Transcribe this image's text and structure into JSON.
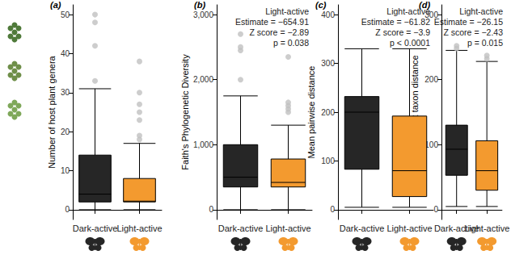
{
  "chart_data": [
    {
      "type": "boxplot",
      "title": "(a)",
      "y_label": "Number of host plant genera",
      "categories": [
        "Dark-active",
        "Light-active"
      ],
      "colors": [
        "#262626",
        "#f39a2f"
      ],
      "boxes": [
        [
          0,
          2,
          4,
          14,
          31
        ],
        [
          0,
          2,
          2.2,
          8,
          17
        ]
      ],
      "outliers": [
        [
          33,
          42,
          48,
          50
        ],
        [
          18,
          19,
          23,
          25,
          27,
          30,
          38
        ]
      ],
      "ylim": [
        -2.5,
        52.5
      ],
      "yticks": [
        0,
        10,
        20,
        30,
        40,
        50
      ],
      "grid": false
    },
    {
      "type": "boxplot",
      "title": "(b)",
      "y_label": "Faith's Phylogenetic Diversity",
      "categories": [
        "Dark-active",
        "Light-active"
      ],
      "colors": [
        "#262626",
        "#f39a2f"
      ],
      "boxes": [
        [
          0,
          350,
          500,
          1000,
          1750
        ],
        [
          0,
          350,
          420,
          780,
          1300
        ]
      ],
      "outliers": [
        [
          2000,
          2450,
          2500,
          2700
        ],
        [
          1500,
          1550,
          1600,
          1650,
          2350
        ]
      ],
      "ylim": [
        -150,
        3150
      ],
      "yticks": [
        0,
        1000,
        2000,
        3000
      ],
      "grid": false,
      "annotation": [
        "Light-active",
        "Estimate = −654.91",
        "Z score = −2.89",
        "p = 0.038"
      ]
    },
    {
      "type": "boxplot",
      "title": "(c)",
      "y_label": "Mean pairwise distance",
      "categories": [
        "Dark-active",
        "Light-active"
      ],
      "colors": [
        "#262626",
        "#f39a2f"
      ],
      "boxes": [
        [
          5,
          83,
          200,
          232,
          330
        ],
        [
          5,
          27,
          80,
          192,
          330
        ]
      ],
      "outliers": [
        [],
        []
      ],
      "ylim": [
        -20,
        420
      ],
      "yticks": [
        0,
        100,
        200,
        300,
        400
      ],
      "grid": false,
      "annotation": [
        "Light-active",
        "Estimate = −61.82",
        "Z score = −3.9",
        "p < 0.0001"
      ]
    },
    {
      "type": "boxplot",
      "title": "(d)",
      "y_label": "Mean nearest taxon distance",
      "categories": [
        "Dark-active",
        "Light-active"
      ],
      "colors": [
        "#262626",
        "#f39a2f"
      ],
      "boxes": [
        [
          5,
          53,
          93,
          130,
          245
        ],
        [
          5,
          30,
          60,
          106,
          228
        ]
      ],
      "outliers": [
        [
          248,
          252
        ],
        [
          232,
          237
        ]
      ],
      "ylim": [
        -15,
        315
      ],
      "yticks": [
        0,
        100,
        200,
        300
      ],
      "grid": false,
      "annotation": [
        "Light-active",
        "Estimate = −26.15",
        "Z score = −2.43",
        "p = 0.015"
      ]
    }
  ]
}
